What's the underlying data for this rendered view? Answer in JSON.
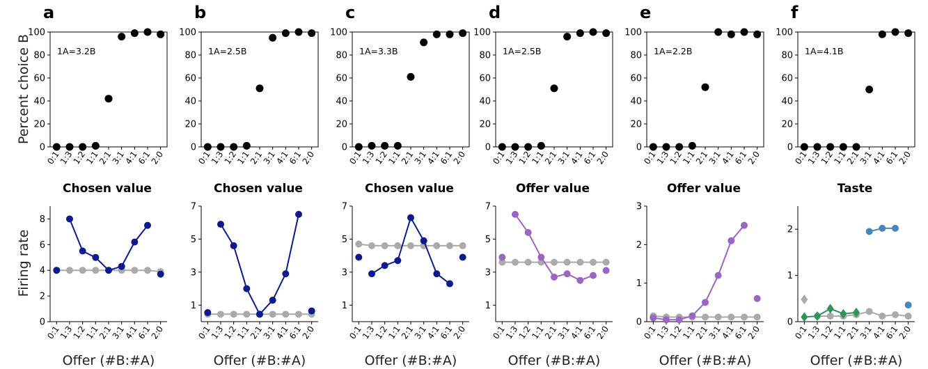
{
  "figure": {
    "ylabel_top": "Percent choice B",
    "ylabel_bottom": "Firing rate",
    "xlabel": "Offer (#B:#A)"
  },
  "colors": {
    "choice": "#000000",
    "baseline": "#aaaaaa",
    "chosen_value": "#0c1a8c",
    "offer_value": "#9966c2",
    "taste_b": "#4a86ba",
    "taste_a": "#2e9457",
    "diamond": "#aaaaaa"
  },
  "chart_data": [
    {
      "type": "scatter",
      "panel": "a",
      "annotation": "1A=3.2B",
      "categories": [
        "0:1",
        "1:3",
        "1:2",
        "1:1",
        "2:1",
        "3:1",
        "4:1",
        "6:1",
        "2:0"
      ],
      "ylim": [
        0,
        100
      ],
      "yticks": [
        0,
        20,
        40,
        60,
        80,
        100
      ],
      "series": [
        {
          "values": [
            0,
            0,
            0,
            1,
            42,
            96,
            99,
            100,
            98
          ]
        }
      ]
    },
    {
      "type": "scatter",
      "panel": "b",
      "annotation": "1A=2.5B",
      "categories": [
        "0:1",
        "1:3",
        "1:2",
        "1:1",
        "2:1",
        "3:1",
        "4:1",
        "6:1",
        "2:0"
      ],
      "ylim": [
        0,
        100
      ],
      "yticks": [
        0,
        20,
        40,
        60,
        80,
        100
      ],
      "series": [
        {
          "values": [
            0,
            0,
            0,
            1,
            51,
            95,
            99,
            100,
            99
          ]
        }
      ]
    },
    {
      "type": "scatter",
      "panel": "c",
      "annotation": "1A=3.3B",
      "categories": [
        "0:1",
        "1:3",
        "1:2",
        "1:1",
        "2:1",
        "3:1",
        "4:1",
        "6:1",
        "2:0"
      ],
      "ylim": [
        0,
        100
      ],
      "yticks": [
        0,
        20,
        40,
        60,
        80,
        100
      ],
      "series": [
        {
          "values": [
            0,
            1,
            1,
            1,
            61,
            91,
            98,
            98,
            99
          ]
        }
      ]
    },
    {
      "type": "scatter",
      "panel": "d",
      "annotation": "1A=2.5B",
      "categories": [
        "0:1",
        "1:3",
        "1:2",
        "1:1",
        "2:1",
        "3:1",
        "4:1",
        "6:1",
        "2:0"
      ],
      "ylim": [
        0,
        100
      ],
      "yticks": [
        0,
        20,
        40,
        60,
        80,
        100
      ],
      "series": [
        {
          "values": [
            0,
            0,
            0,
            1,
            51,
            96,
            99,
            100,
            99
          ]
        }
      ]
    },
    {
      "type": "scatter",
      "panel": "e",
      "annotation": "1A=2.2B",
      "categories": [
        "0:1",
        "1:3",
        "1:2",
        "1:1",
        "2:1",
        "3:1",
        "4:1",
        "6:1",
        "2:0"
      ],
      "ylim": [
        0,
        100
      ],
      "yticks": [
        0,
        20,
        40,
        60,
        80,
        100
      ],
      "series": [
        {
          "values": [
            0,
            0,
            0,
            1,
            52,
            100,
            98,
            100,
            98
          ]
        }
      ]
    },
    {
      "type": "scatter",
      "panel": "f",
      "annotation": "1A=4.1B",
      "categories": [
        "0:1",
        "1:3",
        "1:2",
        "1:1",
        "2:1",
        "3:1",
        "4:1",
        "6:1",
        "2:0"
      ],
      "ylim": [
        0,
        100
      ],
      "yticks": [
        0,
        20,
        40,
        60,
        80,
        100
      ],
      "series": [
        {
          "values": [
            0,
            0,
            0,
            0,
            0,
            50,
            98,
            100,
            99
          ]
        }
      ]
    },
    {
      "type": "line",
      "panel": "a",
      "title": "Chosen value",
      "categories": [
        "0:1",
        "1:3",
        "1:2",
        "1:1",
        "2:1",
        "3:1",
        "4:1",
        "6:1",
        "2:0"
      ],
      "ylim": [
        0,
        9
      ],
      "yticks": [
        0,
        2,
        4,
        6,
        8
      ],
      "series": [
        {
          "color": "#aaaaaa",
          "marker": "circle",
          "segments": [
            [
              0,
              8
            ]
          ],
          "values": [
            4.0,
            4.0,
            4.0,
            4.0,
            4.0,
            4.0,
            4.0,
            4.0,
            3.9
          ]
        },
        {
          "color": "#0c1a8c",
          "marker": "circle",
          "segments": [
            [
              1,
              7
            ]
          ],
          "values": [
            4.0,
            8.0,
            5.5,
            5.0,
            4.0,
            4.3,
            6.2,
            7.5,
            3.7
          ]
        }
      ]
    },
    {
      "type": "line",
      "panel": "b",
      "title": "Chosen value",
      "categories": [
        "0:1",
        "1:3",
        "1:2",
        "1:1",
        "2:1",
        "3:1",
        "4:1",
        "6:1",
        "2:0"
      ],
      "ylim": [
        0,
        7
      ],
      "yticks": [
        1,
        3,
        5,
        7
      ],
      "series": [
        {
          "color": "#aaaaaa",
          "marker": "circle",
          "segments": [
            [
              0,
              8
            ]
          ],
          "values": [
            0.45,
            0.45,
            0.45,
            0.45,
            0.45,
            0.45,
            0.45,
            0.45,
            0.45
          ]
        },
        {
          "color": "#0c1a8c",
          "marker": "circle",
          "segments": [
            [
              1,
              7
            ]
          ],
          "values": [
            0.55,
            5.9,
            4.6,
            2.0,
            0.45,
            1.3,
            2.9,
            6.5,
            0.65
          ]
        }
      ]
    },
    {
      "type": "line",
      "panel": "c",
      "title": "Chosen value",
      "categories": [
        "0:1",
        "1:3",
        "1:2",
        "1:1",
        "2:1",
        "3:1",
        "4:1",
        "6:1",
        "2:0"
      ],
      "ylim": [
        0,
        7
      ],
      "yticks": [
        1,
        3,
        5,
        7
      ],
      "series": [
        {
          "color": "#aaaaaa",
          "marker": "circle",
          "segments": [
            [
              0,
              8
            ]
          ],
          "values": [
            4.7,
            4.6,
            4.6,
            4.6,
            4.6,
            4.6,
            4.6,
            4.6,
            4.6
          ]
        },
        {
          "color": "#0c1a8c",
          "marker": "circle",
          "segments": [
            [
              1,
              7
            ]
          ],
          "values": [
            3.9,
            2.9,
            3.4,
            3.7,
            6.3,
            4.9,
            2.9,
            2.3,
            3.9
          ]
        }
      ]
    },
    {
      "type": "line",
      "panel": "d",
      "title": "Offer value",
      "categories": [
        "0:1",
        "1:3",
        "1:2",
        "1:1",
        "2:1",
        "3:1",
        "4:1",
        "6:1",
        "2:0"
      ],
      "ylim": [
        0,
        7
      ],
      "yticks": [
        1,
        3,
        5,
        7
      ],
      "series": [
        {
          "color": "#aaaaaa",
          "marker": "circle",
          "segments": [
            [
              0,
              8
            ]
          ],
          "values": [
            3.6,
            3.6,
            3.6,
            3.6,
            3.6,
            3.6,
            3.6,
            3.6,
            3.6
          ]
        },
        {
          "color": "#9966c2",
          "marker": "circle",
          "segments": [
            [
              1,
              7
            ]
          ],
          "values": [
            3.9,
            6.5,
            5.4,
            3.9,
            2.7,
            2.9,
            2.5,
            2.8,
            3.1
          ]
        }
      ]
    },
    {
      "type": "line",
      "panel": "e",
      "title": "Offer value",
      "categories": [
        "0:1",
        "1:3",
        "1:2",
        "1:1",
        "2:1",
        "3:1",
        "4:1",
        "6:1",
        "2:0"
      ],
      "ylim": [
        0,
        3
      ],
      "yticks": [
        0,
        1,
        2,
        3
      ],
      "series": [
        {
          "color": "#aaaaaa",
          "marker": "circle",
          "segments": [
            [
              0,
              8
            ]
          ],
          "values": [
            0.15,
            0.12,
            0.12,
            0.12,
            0.12,
            0.12,
            0.12,
            0.12,
            0.12
          ]
        },
        {
          "color": "#9966c2",
          "marker": "circle",
          "segments": [
            [
              0,
              7
            ]
          ],
          "values": [
            0.1,
            0.05,
            0.05,
            0.15,
            0.5,
            1.2,
            2.1,
            2.5,
            0.6
          ]
        }
      ]
    },
    {
      "type": "line",
      "panel": "f",
      "title": "Taste",
      "categories": [
        "0:1",
        "1:3",
        "1:2",
        "1:1",
        "2:1",
        "3:1",
        "4:1",
        "6:1",
        "2:0"
      ],
      "ylim": [
        0,
        2.5
      ],
      "yticks": [
        0,
        1,
        2
      ],
      "series": [
        {
          "color": "#aaaaaa",
          "marker": "diamond",
          "segments": [
            [
              0,
              0
            ]
          ],
          "values": [
            0.48,
            null,
            null,
            null,
            null,
            null,
            null,
            null,
            null
          ]
        },
        {
          "color": "#aaaaaa",
          "marker": "circle",
          "segments": [
            [
              1,
              8
            ]
          ],
          "values": [
            null,
            0.12,
            0.12,
            0.12,
            0.15,
            0.22,
            0.12,
            0.15,
            0.12
          ]
        },
        {
          "color": "#2e9457",
          "marker": "diamond",
          "segments": [
            [
              0,
              4
            ]
          ],
          "values": [
            0.1,
            0.12,
            0.28,
            0.17,
            0.2,
            null,
            null,
            null,
            null
          ]
        },
        {
          "color": "#4a86ba",
          "marker": "circle",
          "segments": [
            [
              5,
              7
            ]
          ],
          "values": [
            null,
            null,
            null,
            null,
            null,
            1.95,
            2.02,
            2.02,
            0.36
          ]
        }
      ]
    }
  ]
}
